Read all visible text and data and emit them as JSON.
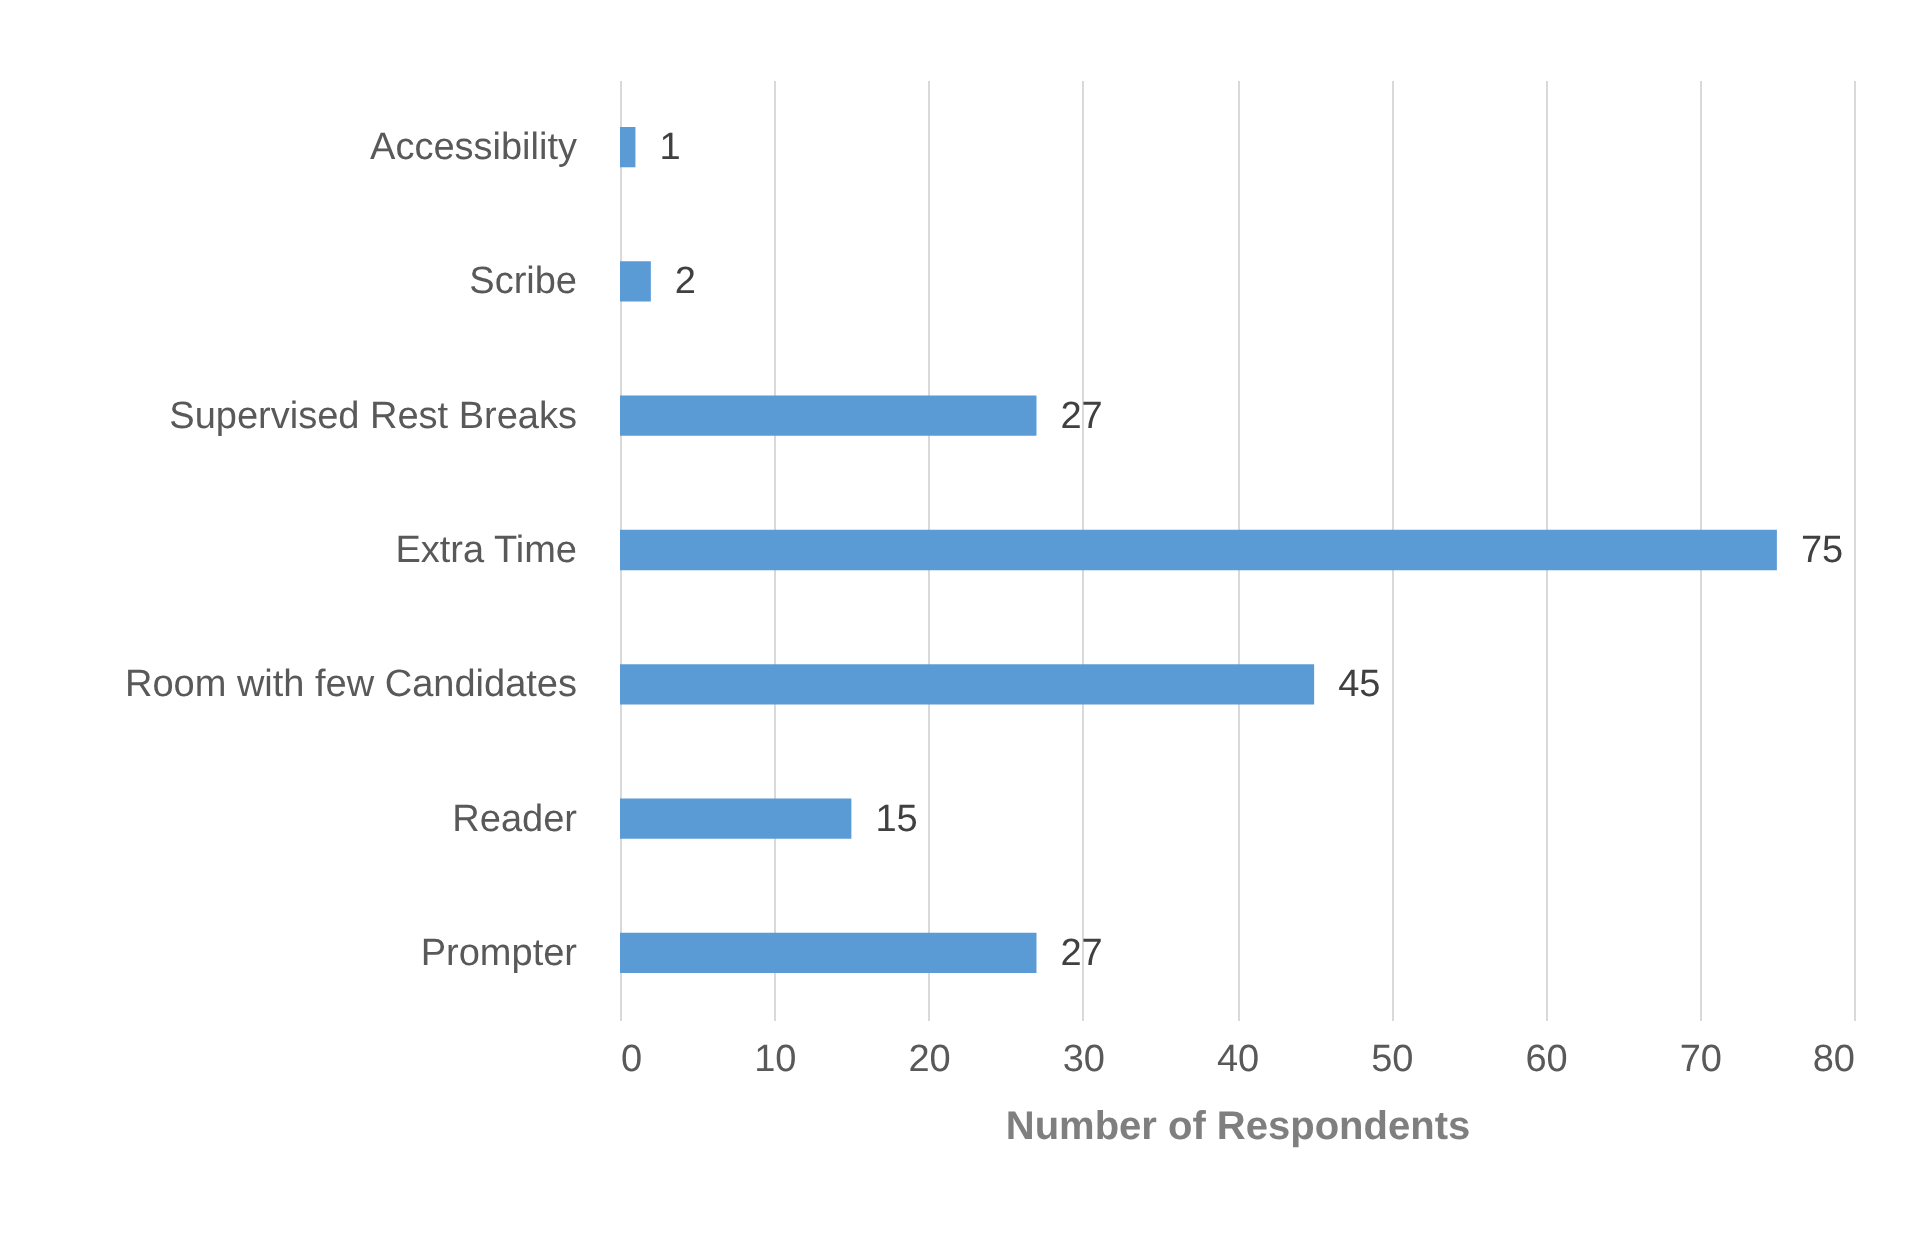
{
  "chart_data": {
    "type": "bar",
    "orientation": "horizontal",
    "categories": [
      "Accessibility",
      "Scribe",
      "Supervised Rest Breaks",
      "Extra Time",
      "Room with few Candidates",
      "Reader",
      "Prompter"
    ],
    "values": [
      1,
      2,
      27,
      75,
      45,
      15,
      27
    ],
    "color": "#5b9bd5",
    "xlabel": "Number of Respondents",
    "xlim": [
      0,
      80
    ],
    "xticks": [
      0,
      10,
      20,
      30,
      40,
      50,
      60,
      70,
      80
    ],
    "grid": "x",
    "data_labels": true
  }
}
